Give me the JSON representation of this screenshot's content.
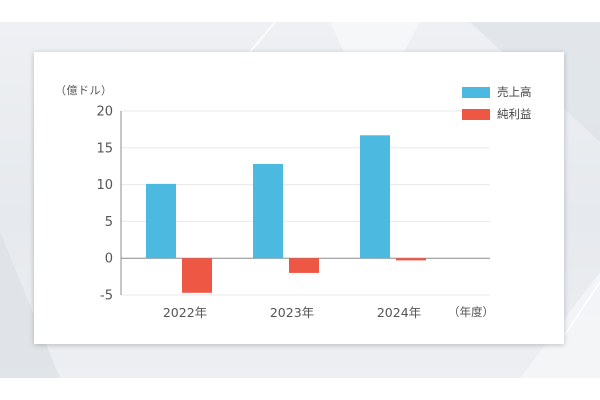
{
  "chart_data": {
    "type": "bar",
    "unit_label": "（億ドル）",
    "x_unit_label": "（年度）",
    "categories": [
      "2022年",
      "2023年",
      "2024年"
    ],
    "series": [
      {
        "name": "売上高",
        "values": [
          10.1,
          12.8,
          16.7
        ],
        "color": "#4cb9e1"
      },
      {
        "name": "純利益",
        "values": [
          -4.7,
          -2.0,
          -0.3
        ],
        "color": "#ef5745"
      }
    ],
    "yticks": [
      20,
      15,
      10,
      5,
      0,
      -5
    ],
    "ylim": [
      -5,
      20
    ],
    "grid": true,
    "legend_position": "top-right"
  }
}
